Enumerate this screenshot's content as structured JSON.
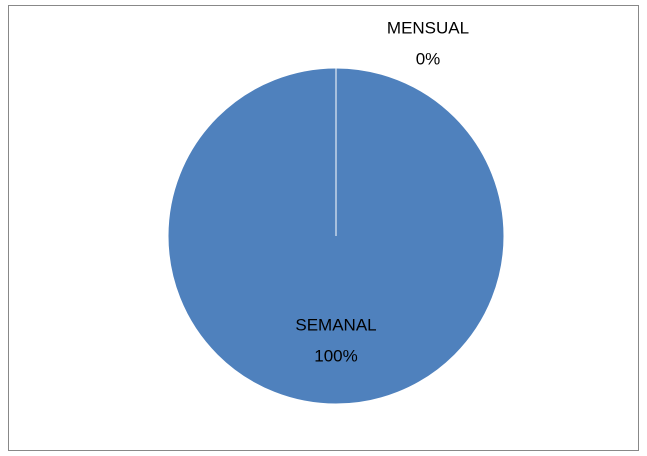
{
  "chart_data": {
    "type": "pie",
    "categories": [
      "SEMANAL",
      "MENSUAL"
    ],
    "values": [
      100,
      0
    ],
    "value_labels": [
      "100%",
      "0%"
    ],
    "colors": [
      "#4f81bd",
      "#c0504d"
    ]
  }
}
